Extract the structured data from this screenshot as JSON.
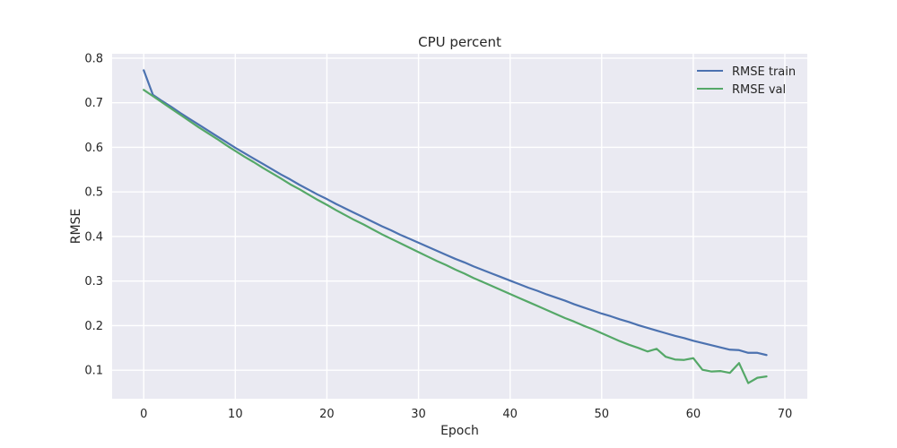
{
  "chart_data": {
    "type": "line",
    "title": "CPU percent",
    "xlabel": "Epoch",
    "ylabel": "RMSE",
    "xlim": [
      -3.45,
      72.45
    ],
    "ylim": [
      0.036,
      0.81
    ],
    "xticks": [
      0,
      10,
      20,
      30,
      40,
      50,
      60,
      70
    ],
    "yticks": [
      0.1,
      0.2,
      0.3,
      0.4,
      0.5,
      0.6,
      0.7,
      0.8
    ],
    "xtick_labels": [
      "0",
      "10",
      "20",
      "30",
      "40",
      "50",
      "60",
      "70"
    ],
    "ytick_labels": [
      "0.1",
      "0.2",
      "0.3",
      "0.4",
      "0.5",
      "0.6",
      "0.7",
      "0.8"
    ],
    "grid": true,
    "legend_position": "top-right",
    "background_color": "#EAEAF2",
    "grid_color": "#FFFFFF",
    "x": [
      0,
      1,
      2,
      3,
      4,
      5,
      6,
      7,
      8,
      9,
      10,
      11,
      12,
      13,
      14,
      15,
      16,
      17,
      18,
      19,
      20,
      21,
      22,
      23,
      24,
      25,
      26,
      27,
      28,
      29,
      30,
      31,
      32,
      33,
      34,
      35,
      36,
      37,
      38,
      39,
      40,
      41,
      42,
      43,
      44,
      45,
      46,
      47,
      48,
      49,
      50,
      51,
      52,
      53,
      54,
      55,
      56,
      57,
      58,
      59,
      60,
      61,
      62,
      63,
      64,
      65,
      66,
      67,
      68
    ],
    "series": [
      {
        "name": "RMSE train",
        "color": "#4C72B0",
        "values": [
          0.773,
          0.718,
          0.704,
          0.691,
          0.677,
          0.664,
          0.651,
          0.638,
          0.625,
          0.612,
          0.599,
          0.587,
          0.575,
          0.563,
          0.551,
          0.539,
          0.528,
          0.516,
          0.505,
          0.494,
          0.484,
          0.473,
          0.463,
          0.453,
          0.443,
          0.433,
          0.423,
          0.414,
          0.404,
          0.395,
          0.386,
          0.377,
          0.368,
          0.359,
          0.35,
          0.342,
          0.333,
          0.325,
          0.317,
          0.309,
          0.301,
          0.293,
          0.285,
          0.278,
          0.27,
          0.263,
          0.256,
          0.248,
          0.241,
          0.234,
          0.227,
          0.221,
          0.214,
          0.208,
          0.201,
          0.195,
          0.189,
          0.183,
          0.177,
          0.172,
          0.166,
          0.161,
          0.156,
          0.151,
          0.146,
          0.145,
          0.139,
          0.139,
          0.134
        ]
      },
      {
        "name": "RMSE val",
        "color": "#55A868",
        "values": [
          0.729,
          0.715,
          0.701,
          0.687,
          0.673,
          0.659,
          0.645,
          0.632,
          0.619,
          0.605,
          0.592,
          0.579,
          0.567,
          0.554,
          0.542,
          0.53,
          0.517,
          0.506,
          0.494,
          0.482,
          0.471,
          0.459,
          0.448,
          0.437,
          0.427,
          0.416,
          0.405,
          0.395,
          0.385,
          0.375,
          0.365,
          0.355,
          0.345,
          0.336,
          0.326,
          0.317,
          0.307,
          0.298,
          0.289,
          0.28,
          0.271,
          0.262,
          0.253,
          0.244,
          0.235,
          0.226,
          0.217,
          0.209,
          0.2,
          0.192,
          0.183,
          0.174,
          0.165,
          0.157,
          0.15,
          0.142,
          0.148,
          0.13,
          0.124,
          0.123,
          0.127,
          0.101,
          0.097,
          0.098,
          0.094,
          0.116,
          0.071,
          0.083,
          0.086
        ]
      }
    ]
  }
}
